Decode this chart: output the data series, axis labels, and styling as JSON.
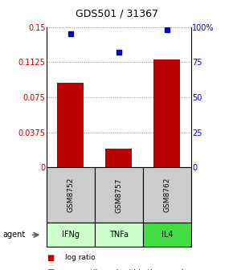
{
  "title": "GDS501 / 31367",
  "sample_labels": [
    "GSM8752",
    "GSM8757",
    "GSM8762"
  ],
  "agent_labels": [
    "IFNg",
    "TNFa",
    "IL4"
  ],
  "log_ratios": [
    0.09,
    0.02,
    0.115
  ],
  "percentile_ranks": [
    95,
    82,
    98
  ],
  "bar_color": "#bb0000",
  "dot_color": "#0000cc",
  "left_ylim": [
    0,
    0.15
  ],
  "right_ylim": [
    0,
    100
  ],
  "left_yticks": [
    0,
    0.0375,
    0.075,
    0.1125,
    0.15
  ],
  "left_yticklabels": [
    "0",
    "0.0375",
    "0.075",
    "0.1125",
    "0.15"
  ],
  "right_yticks": [
    0,
    25,
    50,
    75,
    100
  ],
  "right_yticklabels": [
    "0",
    "25",
    "50",
    "75",
    "100%"
  ],
  "agent_colors": [
    "#ccffcc",
    "#ccffcc",
    "#44dd44"
  ],
  "sample_box_color": "#cccccc",
  "bar_width": 0.55,
  "grid_color": "#888888",
  "title_fontsize": 9,
  "tick_fontsize": 7,
  "legend_fontsize": 6.5
}
